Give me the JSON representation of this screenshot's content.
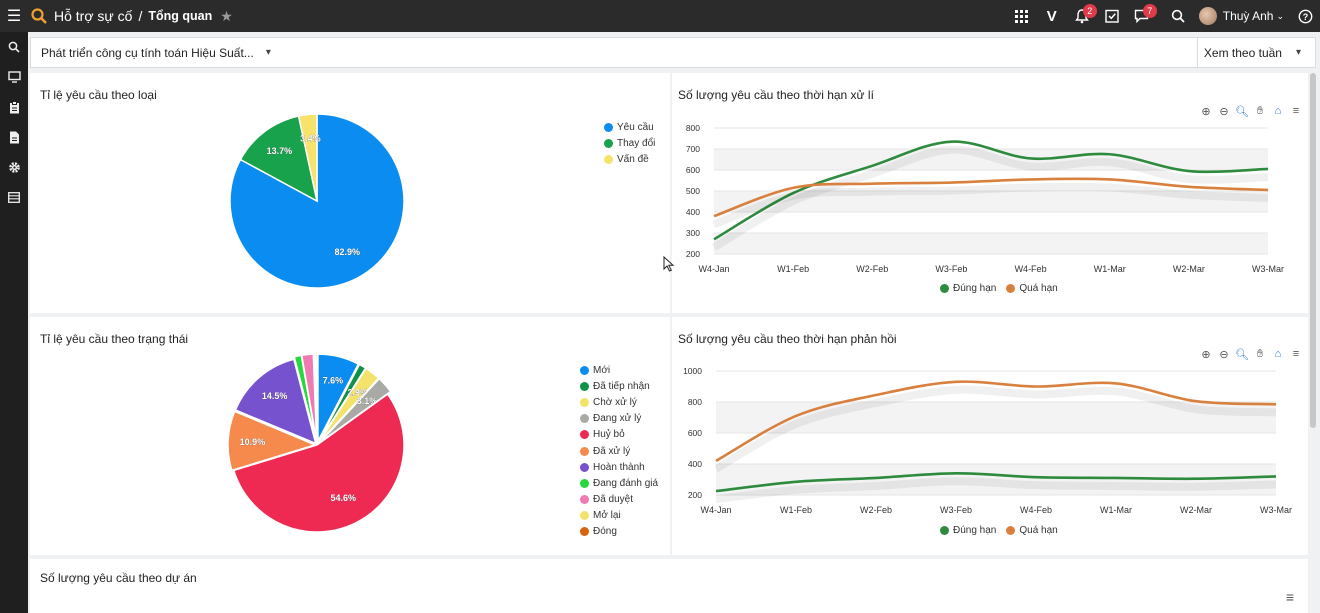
{
  "topbar": {
    "breadcrumb_app": "Hỗ trợ sự cố",
    "breadcrumb_sep": "/",
    "breadcrumb_page": "Tổng quan",
    "notifications_count": "2",
    "messages_count": "7",
    "user_name": "Thuỳ Anh",
    "icons": [
      "hamburger-icon",
      "search-icon",
      "star-icon",
      "apps-grid-icon",
      "v-logo-icon",
      "bell-icon",
      "checklist-icon",
      "chat-icon",
      "search-icon",
      "help-icon"
    ]
  },
  "rail": {
    "icons": [
      "search-icon",
      "monitor-icon",
      "clipboard-icon",
      "document-icon",
      "gear-icon",
      "table-icon"
    ]
  },
  "filter": {
    "project": "Phát triển công cụ tính toán Hiệu Suất...",
    "view": "Xem theo tuần"
  },
  "panels": {
    "type_ratio_title": "Tỉ lệ yêu cầu theo loại",
    "deadline_title": "Số lượng yêu cầu theo thời hạn xử lí",
    "status_ratio_title": "Tỉ lệ yêu cầu theo trạng thái",
    "response_title": "Số lượng yêu cầu theo thời hạn phản hồi",
    "project_title": "Số lượng yêu cầu theo dự án"
  },
  "colors": {
    "green": "#2e8b3e",
    "orange": "#d9803f"
  },
  "chart_data": [
    {
      "type": "pie",
      "title": "Tỉ lệ yêu cầu theo loại",
      "labels": [
        "Yêu cầu",
        "Thay đổi",
        "Vấn đề"
      ],
      "values": [
        82.9,
        13.7,
        3.4
      ],
      "data_labels": [
        "82.9%",
        "13.7%",
        "3.4%"
      ],
      "colors": [
        "#0a8cf0",
        "#17a24b",
        "#f7e26b"
      ],
      "legend": "right"
    },
    {
      "type": "line",
      "title": "Số lượng yêu cầu theo thời hạn xử lí",
      "categories": [
        "W4-Jan",
        "W1-Feb",
        "W2-Feb",
        "W3-Feb",
        "W4-Feb",
        "W1-Mar",
        "W2-Mar",
        "W3-Mar"
      ],
      "yticks": [
        "800",
        "700",
        "600",
        "500",
        "400",
        "300",
        "200"
      ],
      "ylim": [
        200,
        800
      ],
      "series": [
        {
          "name": "Đúng hạn",
          "color": "#2e8b3e",
          "values": [
            270,
            490,
            620,
            735,
            655,
            675,
            595,
            605
          ]
        },
        {
          "name": "Quá hạn",
          "color": "#d9803f",
          "values": [
            380,
            515,
            535,
            540,
            555,
            555,
            520,
            505
          ]
        }
      ],
      "legend": "bottom"
    },
    {
      "type": "pie",
      "title": "Tỉ lệ yêu cầu theo trạng thái",
      "labels": [
        "Mới",
        "Đã tiếp nhận",
        "Chờ xử lý",
        "Đang xử lý",
        "Huỷ bỏ",
        "Đã xử lý",
        "Hoàn thành",
        "Đang đánh giá",
        "Đã duyệt",
        "Mở lại",
        "Đóng"
      ],
      "values": [
        7.6,
        1.3,
        2.9,
        3.1,
        54.6,
        10.9,
        14.5,
        1.3,
        2.1,
        0.3,
        0.3
      ],
      "data_labels": [
        "7.6%",
        "",
        "2.9%",
        "3.1%",
        "54.6%",
        "10.9%",
        "14.5%",
        "",
        "",
        "",
        ""
      ],
      "colors": [
        "#0a8cf0",
        "#109048",
        "#f4e36b",
        "#a9aaa6",
        "#ef2a52",
        "#f58a4c",
        "#7752cf",
        "#26d83c",
        "#f07ab2",
        "#f4e36b",
        "#d9620c"
      ],
      "legend": "right"
    },
    {
      "type": "line",
      "title": "Số lượng yêu cầu theo thời hạn phản hồi",
      "categories": [
        "W4-Jan",
        "W1-Feb",
        "W2-Feb",
        "W3-Feb",
        "W4-Feb",
        "W1-Mar",
        "W2-Mar",
        "W3-Mar"
      ],
      "yticks": [
        "1000",
        "800",
        "600",
        "400",
        "200"
      ],
      "ylim": [
        200,
        1000
      ],
      "series": [
        {
          "name": "Đúng hạn",
          "color": "#2e8b3e",
          "values": [
            225,
            285,
            310,
            340,
            315,
            310,
            305,
            320
          ]
        },
        {
          "name": "Quá hạn",
          "color": "#d9803f",
          "values": [
            420,
            710,
            845,
            930,
            900,
            920,
            805,
            785
          ]
        }
      ],
      "legend": "bottom"
    }
  ]
}
